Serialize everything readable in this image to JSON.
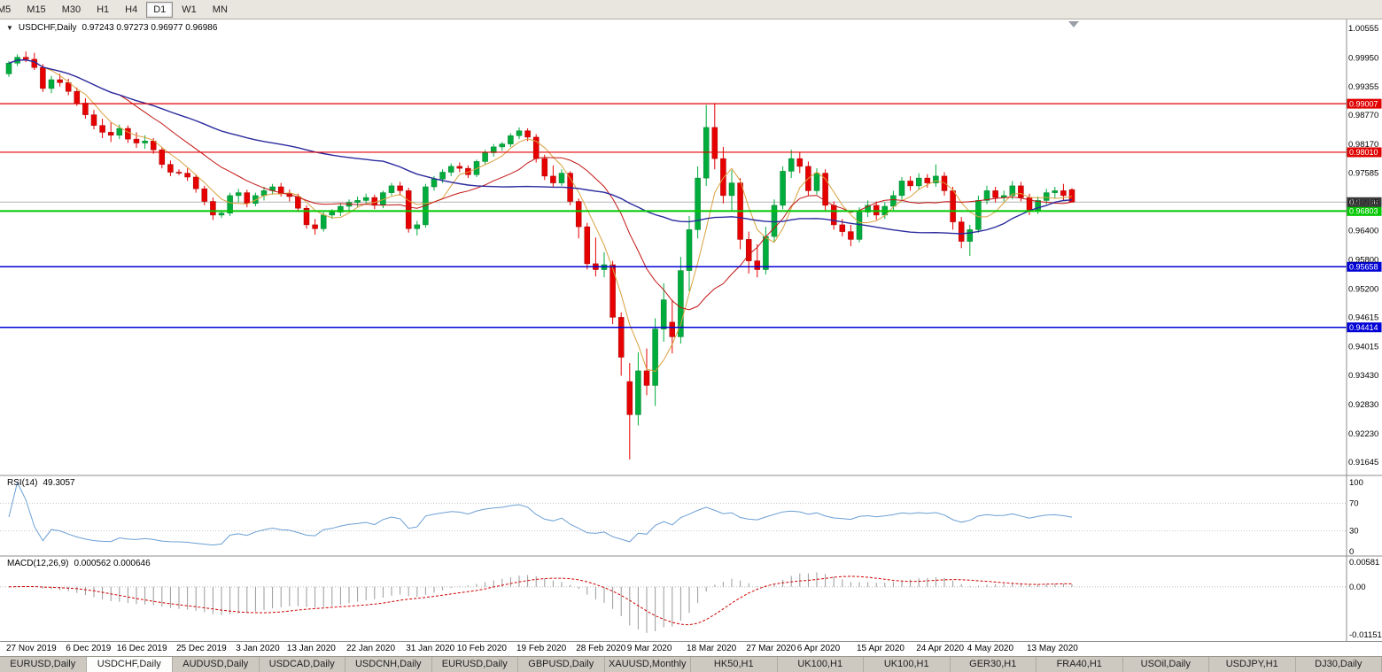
{
  "toolbar": {
    "timeframes": [
      {
        "label": "M5",
        "active": false
      },
      {
        "label": "M15",
        "active": false
      },
      {
        "label": "M30",
        "active": false
      },
      {
        "label": "H1",
        "active": false
      },
      {
        "label": "H4",
        "active": false
      },
      {
        "label": "D1",
        "active": true
      },
      {
        "label": "W1",
        "active": false
      },
      {
        "label": "MN",
        "active": false
      }
    ]
  },
  "chart": {
    "marker": "▼",
    "symbol": "USDCHF,Daily",
    "ohlc": "0.97243 0.97273 0.96977 0.96986"
  },
  "rsi": {
    "name": "RSI(14)",
    "value": "49.3057"
  },
  "macd": {
    "name": "MACD(12,26,9)",
    "values": "0.000562 0.000646"
  },
  "tabs": [
    {
      "label": "EURUSD,Daily",
      "active": false
    },
    {
      "label": "USDCHF,Daily",
      "active": true
    },
    {
      "label": "AUDUSD,Daily",
      "active": false
    },
    {
      "label": "USDCAD,Daily",
      "active": false
    },
    {
      "label": "USDCNH,Daily",
      "active": false
    },
    {
      "label": "EURUSD,Daily",
      "active": false
    },
    {
      "label": "GBPUSD,Daily",
      "active": false
    },
    {
      "label": "XAUUSD,Monthly",
      "active": false
    },
    {
      "label": "HK50,H1",
      "active": false
    },
    {
      "label": "UK100,H1",
      "active": false
    },
    {
      "label": "UK100,H1",
      "active": false
    },
    {
      "label": "GER30,H1",
      "active": false
    },
    {
      "label": "FRA40,H1",
      "active": false
    },
    {
      "label": "USOil,Daily",
      "active": false
    },
    {
      "label": "USDJPY,H1",
      "active": false
    },
    {
      "label": "DJ30,Daily",
      "active": false
    }
  ],
  "colors": {
    "bull": "#00ad3c",
    "bull_dark": "#00802c",
    "bear": "#e60000",
    "bear_dark": "#ab0000",
    "bid_line": "#b4b4b4",
    "badge_dark": "#3a3a3a",
    "axis_line": "#8c8c8c"
  },
  "chart_data": {
    "type": "candlestick",
    "symbol": "USDCHF",
    "timeframe": "Daily",
    "title": "USDCHF,Daily",
    "ohlc_display": {
      "open": 0.97243,
      "high": 0.97273,
      "low": 0.96977,
      "close": 0.96986
    },
    "y_range": [
      0.91645,
      1.00555
    ],
    "price_axis_labels": [
      "1.00555",
      "0.99950",
      "0.99355",
      "0.98770",
      "0.98170",
      "0.97585",
      "0.96985",
      "0.96400",
      "0.95800",
      "0.95200",
      "0.94615",
      "0.94015",
      "0.93430",
      "0.92830",
      "0.92230",
      "0.91645"
    ],
    "current_price": {
      "value": "0.96986",
      "price": 0.96986
    },
    "levels": [
      {
        "price": 0.99007,
        "label": "0.99007",
        "color": "#e00000",
        "width": 1.2
      },
      {
        "price": 0.9801,
        "label": "0.98010",
        "color": "#e00000",
        "width": 1.2
      },
      {
        "price": 0.96803,
        "label": "0.96803",
        "color": "#00c800",
        "width": 2
      },
      {
        "price": 0.95658,
        "label": "0.95658",
        "color": "#0000d6",
        "width": 1.5
      },
      {
        "price": 0.94414,
        "label": "0.94414",
        "color": "#0000d6",
        "width": 1.5
      }
    ],
    "moving_averages": [
      {
        "name": "fast",
        "period": 5,
        "color": "#d9a13e"
      },
      {
        "name": "mid",
        "period": 14,
        "color": "#c41414"
      },
      {
        "name": "slow",
        "period": 45,
        "color": "#2b2b9e"
      }
    ],
    "rsi": {
      "period": 14,
      "current": 49.3057,
      "levels": [
        70,
        30
      ],
      "axis_labels": [
        "100",
        "70",
        "30",
        "0"
      ],
      "color": "#6b9fd4"
    },
    "macd": {
      "fast": 12,
      "slow": 26,
      "signal": 9,
      "current_macd": 0.000562,
      "current_signal": 0.000646,
      "axis_labels": [
        "0.00581",
        "0.00",
        "-0.01151"
      ],
      "axis_max": 0.00581,
      "axis_min": -0.01151,
      "histogram_color": "#9a9a9a",
      "signal_color": "#d00000"
    },
    "time_labels": [
      {
        "text": "27 Nov 2019",
        "index": 0
      },
      {
        "text": "6 Dec 2019",
        "index": 7
      },
      {
        "text": "16 Dec 2019",
        "index": 13
      },
      {
        "text": "25 Dec 2019",
        "index": 20
      },
      {
        "text": "3 Jan 2020",
        "index": 27
      },
      {
        "text": "13 Jan 2020",
        "index": 33
      },
      {
        "text": "22 Jan 2020",
        "index": 40
      },
      {
        "text": "31 Jan 2020",
        "index": 47
      },
      {
        "text": "10 Feb 2020",
        "index": 53
      },
      {
        "text": "19 Feb 2020",
        "index": 60
      },
      {
        "text": "28 Feb 2020",
        "index": 67
      },
      {
        "text": "9 Mar 2020",
        "index": 73
      },
      {
        "text": "18 Mar 2020",
        "index": 80
      },
      {
        "text": "27 Mar 2020",
        "index": 87
      },
      {
        "text": "6 Apr 2020",
        "index": 93
      },
      {
        "text": "15 Apr 2020",
        "index": 100
      },
      {
        "text": "24 Apr 2020",
        "index": 107
      },
      {
        "text": "4 May 2020",
        "index": 113
      },
      {
        "text": "13 May 2020",
        "index": 120
      }
    ],
    "candles": [
      [
        "2019-11-27",
        0.9962,
        0.9988,
        0.9956,
        0.9984
      ],
      [
        "2019-11-28",
        0.9984,
        1.0002,
        0.9978,
        0.9996
      ],
      [
        "2019-11-29",
        0.9996,
        1.0008,
        0.9986,
        0.9992
      ],
      [
        "2019-12-02",
        0.9992,
        1.0005,
        0.997,
        0.9975
      ],
      [
        "2019-12-03",
        0.9975,
        0.9982,
        0.9925,
        0.9932
      ],
      [
        "2019-12-04",
        0.9932,
        0.9958,
        0.9922,
        0.995
      ],
      [
        "2019-12-05",
        0.995,
        0.9962,
        0.9936,
        0.9944
      ],
      [
        "2019-12-06",
        0.9944,
        0.9952,
        0.9918,
        0.9926
      ],
      [
        "2019-12-09",
        0.9926,
        0.9934,
        0.9896,
        0.9902
      ],
      [
        "2019-12-10",
        0.9902,
        0.9912,
        0.987,
        0.9878
      ],
      [
        "2019-12-11",
        0.9878,
        0.9888,
        0.9848,
        0.9856
      ],
      [
        "2019-12-12",
        0.9856,
        0.987,
        0.983,
        0.9842
      ],
      [
        "2019-12-13",
        0.9842,
        0.9862,
        0.9822,
        0.9836
      ],
      [
        "2019-12-16",
        0.9836,
        0.9858,
        0.9828,
        0.985
      ],
      [
        "2019-12-17",
        0.985,
        0.9856,
        0.982,
        0.9828
      ],
      [
        "2019-12-18",
        0.9828,
        0.9842,
        0.981,
        0.982
      ],
      [
        "2019-12-19",
        0.982,
        0.9836,
        0.9808,
        0.9824
      ],
      [
        "2019-12-20",
        0.9824,
        0.983,
        0.9798,
        0.9806
      ],
      [
        "2019-12-23",
        0.9806,
        0.9812,
        0.9768,
        0.9776
      ],
      [
        "2019-12-24",
        0.9776,
        0.9784,
        0.9752,
        0.976
      ],
      [
        "2019-12-25",
        0.976,
        0.9766,
        0.9754,
        0.9758
      ],
      [
        "2019-12-26",
        0.9758,
        0.9768,
        0.9742,
        0.975
      ],
      [
        "2019-12-27",
        0.975,
        0.9756,
        0.9718,
        0.9726
      ],
      [
        "2019-12-30",
        0.9726,
        0.9732,
        0.9692,
        0.97
      ],
      [
        "2019-12-31",
        0.97,
        0.9708,
        0.9662,
        0.9672
      ],
      [
        "2020-01-01",
        0.9672,
        0.9682,
        0.9666,
        0.9676
      ],
      [
        "2020-01-02",
        0.9676,
        0.9718,
        0.967,
        0.9712
      ],
      [
        "2020-01-03",
        0.9712,
        0.9726,
        0.9698,
        0.9718
      ],
      [
        "2020-01-06",
        0.9718,
        0.9724,
        0.9688,
        0.9696
      ],
      [
        "2020-01-07",
        0.9696,
        0.9718,
        0.969,
        0.9712
      ],
      [
        "2020-01-08",
        0.9712,
        0.973,
        0.9702,
        0.9722
      ],
      [
        "2020-01-09",
        0.9722,
        0.9736,
        0.9714,
        0.973
      ],
      [
        "2020-01-10",
        0.973,
        0.9738,
        0.971,
        0.9716
      ],
      [
        "2020-01-13",
        0.9716,
        0.9724,
        0.97,
        0.971
      ],
      [
        "2020-01-14",
        0.971,
        0.9716,
        0.9678,
        0.9686
      ],
      [
        "2020-01-15",
        0.9686,
        0.9692,
        0.9644,
        0.9652
      ],
      [
        "2020-01-16",
        0.9652,
        0.9664,
        0.9632,
        0.9644
      ],
      [
        "2020-01-17",
        0.9644,
        0.9678,
        0.9638,
        0.9672
      ],
      [
        "2020-01-20",
        0.9672,
        0.9684,
        0.9664,
        0.9678
      ],
      [
        "2020-01-21",
        0.9678,
        0.9696,
        0.967,
        0.969
      ],
      [
        "2020-01-22",
        0.969,
        0.9704,
        0.9682,
        0.9698
      ],
      [
        "2020-01-23",
        0.9698,
        0.971,
        0.9688,
        0.9702
      ],
      [
        "2020-01-24",
        0.9702,
        0.9716,
        0.9694,
        0.9708
      ],
      [
        "2020-01-27",
        0.9708,
        0.9714,
        0.9684,
        0.9692
      ],
      [
        "2020-01-28",
        0.9692,
        0.9722,
        0.9686,
        0.9718
      ],
      [
        "2020-01-29",
        0.9718,
        0.9738,
        0.9712,
        0.9732
      ],
      [
        "2020-01-30",
        0.9732,
        0.974,
        0.9712,
        0.9722
      ],
      [
        "2020-01-31",
        0.9722,
        0.9728,
        0.9636,
        0.9644
      ],
      [
        "2020-02-03",
        0.9644,
        0.966,
        0.963,
        0.9652
      ],
      [
        "2020-02-04",
        0.9652,
        0.9736,
        0.9646,
        0.973
      ],
      [
        "2020-02-05",
        0.973,
        0.9752,
        0.9722,
        0.9746
      ],
      [
        "2020-02-06",
        0.9746,
        0.9766,
        0.9738,
        0.976
      ],
      [
        "2020-02-07",
        0.976,
        0.9778,
        0.9752,
        0.9772
      ],
      [
        "2020-02-10",
        0.9772,
        0.978,
        0.976,
        0.9768
      ],
      [
        "2020-02-11",
        0.9768,
        0.9774,
        0.9748,
        0.9755
      ],
      [
        "2020-02-12",
        0.9755,
        0.9786,
        0.975,
        0.9782
      ],
      [
        "2020-02-13",
        0.9782,
        0.9806,
        0.9776,
        0.98
      ],
      [
        "2020-02-14",
        0.98,
        0.9818,
        0.9792,
        0.9812
      ],
      [
        "2020-02-17",
        0.9812,
        0.9822,
        0.9804,
        0.9818
      ],
      [
        "2020-02-18",
        0.9818,
        0.984,
        0.9812,
        0.9835
      ],
      [
        "2020-02-19",
        0.9835,
        0.9852,
        0.9828,
        0.9845
      ],
      [
        "2020-02-20",
        0.9845,
        0.985,
        0.9824,
        0.9832
      ],
      [
        "2020-02-21",
        0.9832,
        0.9838,
        0.978,
        0.9788
      ],
      [
        "2020-02-24",
        0.9788,
        0.9796,
        0.9744,
        0.9752
      ],
      [
        "2020-02-25",
        0.9752,
        0.9774,
        0.973,
        0.9738
      ],
      [
        "2020-02-26",
        0.9738,
        0.9766,
        0.9732,
        0.9758
      ],
      [
        "2020-02-27",
        0.9758,
        0.9762,
        0.9692,
        0.97
      ],
      [
        "2020-02-28",
        0.97,
        0.9706,
        0.9624,
        0.9648
      ],
      [
        "2020-03-02",
        0.9648,
        0.9656,
        0.956,
        0.9572
      ],
      [
        "2020-03-03",
        0.9572,
        0.9626,
        0.9546,
        0.956
      ],
      [
        "2020-03-04",
        0.956,
        0.9596,
        0.9544,
        0.957
      ],
      [
        "2020-03-05",
        0.957,
        0.9578,
        0.9448,
        0.9462
      ],
      [
        "2020-03-06",
        0.9462,
        0.9472,
        0.9342,
        0.938
      ],
      [
        "2020-03-09",
        0.933,
        0.9368,
        0.917,
        0.9262
      ],
      [
        "2020-03-10",
        0.9262,
        0.939,
        0.924,
        0.9352
      ],
      [
        "2020-03-11",
        0.9352,
        0.9398,
        0.9302,
        0.9322
      ],
      [
        "2020-03-12",
        0.9322,
        0.946,
        0.928,
        0.9438
      ],
      [
        "2020-03-13",
        0.9438,
        0.9532,
        0.9412,
        0.9498
      ],
      [
        "2020-03-16",
        0.9452,
        0.9498,
        0.9388,
        0.9422
      ],
      [
        "2020-03-17",
        0.9422,
        0.9586,
        0.9408,
        0.9558
      ],
      [
        "2020-03-18",
        0.9558,
        0.967,
        0.9516,
        0.9642
      ],
      [
        "2020-03-19",
        0.9642,
        0.9772,
        0.9624,
        0.9748
      ],
      [
        "2020-03-20",
        0.9748,
        0.9898,
        0.9732,
        0.9852
      ],
      [
        "2020-03-23",
        0.9852,
        0.9902,
        0.9766,
        0.9788
      ],
      [
        "2020-03-24",
        0.9788,
        0.9812,
        0.9696,
        0.9712
      ],
      [
        "2020-03-25",
        0.9712,
        0.9764,
        0.9682,
        0.9738
      ],
      [
        "2020-03-26",
        0.9738,
        0.9748,
        0.9602,
        0.9622
      ],
      [
        "2020-03-27",
        0.9622,
        0.9638,
        0.9552,
        0.9578
      ],
      [
        "2020-03-30",
        0.9578,
        0.9612,
        0.9544,
        0.956
      ],
      [
        "2020-03-31",
        0.956,
        0.9648,
        0.955,
        0.9628
      ],
      [
        "2020-04-01",
        0.9628,
        0.9704,
        0.9618,
        0.9692
      ],
      [
        "2020-04-02",
        0.9692,
        0.9772,
        0.9684,
        0.9762
      ],
      [
        "2020-04-03",
        0.9762,
        0.9806,
        0.9748,
        0.9788
      ],
      [
        "2020-04-06",
        0.9788,
        0.98,
        0.9758,
        0.9772
      ],
      [
        "2020-04-07",
        0.9772,
        0.9782,
        0.9712,
        0.9722
      ],
      [
        "2020-04-08",
        0.9722,
        0.9768,
        0.9714,
        0.9758
      ],
      [
        "2020-04-09",
        0.9758,
        0.9766,
        0.9682,
        0.9692
      ],
      [
        "2020-04-10",
        0.9692,
        0.97,
        0.9642,
        0.9652
      ],
      [
        "2020-04-13",
        0.9652,
        0.9664,
        0.9628,
        0.9638
      ],
      [
        "2020-04-14",
        0.9638,
        0.9652,
        0.9608,
        0.9622
      ],
      [
        "2020-04-15",
        0.9622,
        0.9688,
        0.9616,
        0.9678
      ],
      [
        "2020-04-16",
        0.9678,
        0.9702,
        0.9668,
        0.9692
      ],
      [
        "2020-04-17",
        0.9692,
        0.97,
        0.9662,
        0.9672
      ],
      [
        "2020-04-20",
        0.9672,
        0.9698,
        0.9664,
        0.969
      ],
      [
        "2020-04-21",
        0.969,
        0.9722,
        0.9682,
        0.9712
      ],
      [
        "2020-04-22",
        0.9712,
        0.975,
        0.9704,
        0.9742
      ],
      [
        "2020-04-23",
        0.9742,
        0.9752,
        0.9722,
        0.9732
      ],
      [
        "2020-04-24",
        0.9732,
        0.9758,
        0.9724,
        0.9748
      ],
      [
        "2020-04-27",
        0.9748,
        0.9756,
        0.9728,
        0.9738
      ],
      [
        "2020-04-28",
        0.9738,
        0.9776,
        0.973,
        0.9752
      ],
      [
        "2020-04-29",
        0.9752,
        0.976,
        0.9712,
        0.9722
      ],
      [
        "2020-04-30",
        0.9722,
        0.973,
        0.9642,
        0.9658
      ],
      [
        "2020-05-01",
        0.9658,
        0.9668,
        0.9604,
        0.9618
      ],
      [
        "2020-05-04",
        0.9618,
        0.9652,
        0.9588,
        0.9642
      ],
      [
        "2020-05-05",
        0.9642,
        0.9712,
        0.9636,
        0.9702
      ],
      [
        "2020-05-06",
        0.9702,
        0.9732,
        0.9694,
        0.9722
      ],
      [
        "2020-05-07",
        0.9722,
        0.973,
        0.9698,
        0.9708
      ],
      [
        "2020-05-08",
        0.9708,
        0.9722,
        0.97,
        0.9712
      ],
      [
        "2020-05-11",
        0.9712,
        0.9742,
        0.9704,
        0.9732
      ],
      [
        "2020-05-12",
        0.9732,
        0.974,
        0.97,
        0.9708
      ],
      [
        "2020-05-13",
        0.9708,
        0.9716,
        0.9672,
        0.9682
      ],
      [
        "2020-05-14",
        0.9682,
        0.971,
        0.9674,
        0.9702
      ],
      [
        "2020-05-15",
        0.9702,
        0.9726,
        0.9694,
        0.9718
      ],
      [
        "2020-05-18",
        0.9718,
        0.973,
        0.9706,
        0.9722
      ],
      [
        "2020-05-19",
        0.9722,
        0.9736,
        0.9702,
        0.9712
      ],
      [
        "2020-05-20",
        0.97243,
        0.97273,
        0.96977,
        0.96986
      ]
    ]
  }
}
